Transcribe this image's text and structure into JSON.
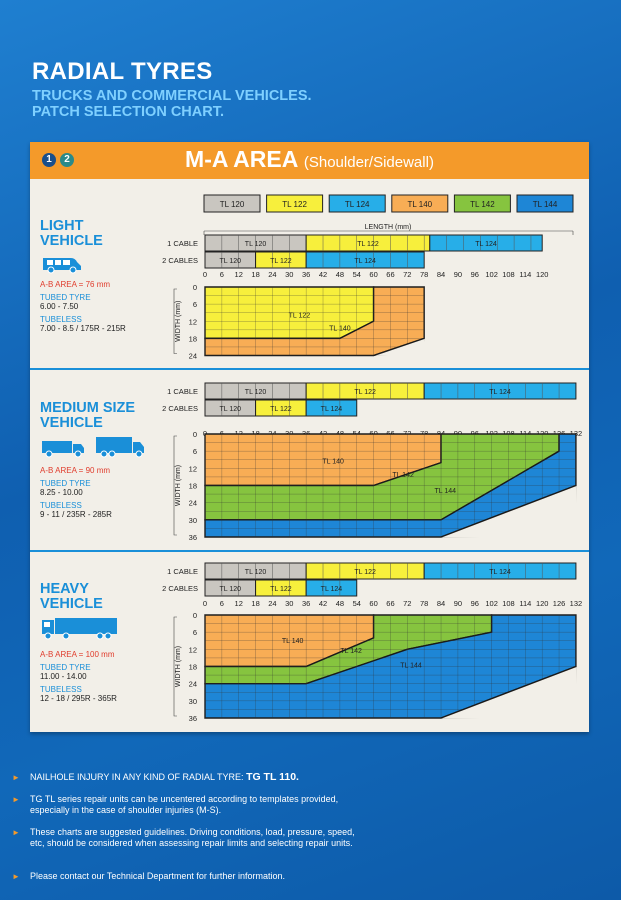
{
  "header": {
    "title": "RADIAL TYRES",
    "subtitle_line1": "TRUCKS AND COMMERCIAL VEHICLES.",
    "subtitle_line2": "PATCH SELECTION CHART."
  },
  "band": {
    "num1": "1",
    "num2": "2",
    "title": "M-A AREA",
    "title_small": "(Shoulder/Sidewall)"
  },
  "legend": {
    "items": [
      {
        "label": "TL 120",
        "color": "#c9c6c0"
      },
      {
        "label": "TL 122",
        "color": "#f7ef3c"
      },
      {
        "label": "TL 124",
        "color": "#27aee8"
      },
      {
        "label": "TL 140",
        "color": "#f8ad55"
      },
      {
        "label": "TL 142",
        "color": "#86c43f"
      },
      {
        "label": "TL 144",
        "color": "#1e86d6"
      }
    ],
    "length_label": "LENGTH (mm)"
  },
  "labels": {
    "one_cable": "1 CABLE",
    "two_cables": "2 CABLES",
    "width_axis": "WIDTH (mm)"
  },
  "sections": [
    {
      "name_line1": "LIGHT",
      "name_line2": "VEHICLE",
      "ab_area": "A-B AREA = 76 mm",
      "tubed_label": "TUBED TYRE",
      "tubed_value": "6.00 - 7.50",
      "tubeless_label": "TUBELESS",
      "tubeless_value": "7.00 - 8.5 / 175R - 215R"
    },
    {
      "name_line1": "MEDIUM SIZE",
      "name_line2": "VEHICLE",
      "ab_area": "A-B AREA = 90 mm",
      "tubed_label": "TUBED TYRE",
      "tubed_value": "8.25 - 10.00",
      "tubeless_label": "TUBELESS",
      "tubeless_value": "9 - 11 / 235R - 285R"
    },
    {
      "name_line1": "HEAVY",
      "name_line2": "VEHICLE",
      "ab_area": "A-B AREA = 100 mm",
      "tubed_label": "TUBED TYRE",
      "tubed_value": "11.00 - 14.00",
      "tubeless_label": "TUBELESS",
      "tubeless_value": "12 - 18 / 295R - 365R"
    }
  ],
  "chart_data": [
    {
      "type": "area",
      "vehicle": "LIGHT VEHICLE",
      "x_ticks": [
        "0",
        "6",
        "12",
        "18",
        "24",
        "30",
        "36",
        "42",
        "48",
        "54",
        "60",
        "66",
        "72",
        "78",
        "84",
        "90",
        "96",
        "102",
        "108",
        "114",
        "120"
      ],
      "y_ticks": [
        "0",
        "6",
        "12",
        "18",
        "24"
      ],
      "xlim": [
        0,
        78
      ],
      "ylim": [
        0,
        24
      ],
      "one_cable": [
        {
          "label": "TL 120",
          "from": 0,
          "to": 36
        },
        {
          "label": "TL 122",
          "from": 36,
          "to": 80
        },
        {
          "label": "TL 124",
          "from": 80,
          "to": 120
        }
      ],
      "two_cables": [
        {
          "label": "TL 120",
          "from": 0,
          "to": 18
        },
        {
          "label": "TL 122",
          "from": 18,
          "to": 36
        },
        {
          "label": "TL 124",
          "from": 36,
          "to": 78
        }
      ],
      "regions": [
        {
          "label": "TL 122",
          "polygon": [
            [
              0,
              0
            ],
            [
              60,
              0
            ],
            [
              60,
              12
            ],
            [
              48,
              18
            ],
            [
              0,
              18
            ]
          ]
        },
        {
          "label": "TL 140",
          "polygon": [
            [
              60,
              0
            ],
            [
              78,
              0
            ],
            [
              78,
              18
            ],
            [
              60,
              24
            ],
            [
              0,
              24
            ],
            [
              0,
              18
            ],
            [
              48,
              18
            ],
            [
              60,
              12
            ]
          ]
        }
      ]
    },
    {
      "type": "area",
      "vehicle": "MEDIUM SIZE VEHICLE",
      "x_ticks": [
        "0",
        "6",
        "12",
        "18",
        "24",
        "30",
        "36",
        "42",
        "48",
        "54",
        "60",
        "66",
        "72",
        "78",
        "84",
        "90",
        "96",
        "102",
        "108",
        "114",
        "120",
        "126",
        "132"
      ],
      "y_ticks": [
        "0",
        "6",
        "12",
        "18",
        "24",
        "30",
        "36"
      ],
      "xlim": [
        0,
        132
      ],
      "ylim": [
        0,
        36
      ],
      "one_cable": [
        {
          "label": "TL 120",
          "from": 0,
          "to": 36
        },
        {
          "label": "TL 122",
          "from": 36,
          "to": 78
        },
        {
          "label": "TL 124",
          "from": 78,
          "to": 132
        }
      ],
      "two_cables": [
        {
          "label": "TL 120",
          "from": 0,
          "to": 18
        },
        {
          "label": "TL 122",
          "from": 18,
          "to": 36
        },
        {
          "label": "TL 124",
          "from": 36,
          "to": 54
        }
      ],
      "regions": [
        {
          "label": "TL 140",
          "polygon": [
            [
              0,
              0
            ],
            [
              84,
              0
            ],
            [
              84,
              10
            ],
            [
              60,
              18
            ],
            [
              0,
              18
            ]
          ]
        },
        {
          "label": "TL 142",
          "polygon": [
            [
              84,
              0
            ],
            [
              126,
              0
            ],
            [
              126,
              6
            ],
            [
              84,
              30
            ],
            [
              0,
              30
            ],
            [
              0,
              18
            ],
            [
              60,
              18
            ],
            [
              84,
              10
            ]
          ]
        },
        {
          "label": "TL 144",
          "polygon": [
            [
              126,
              0
            ],
            [
              132,
              0
            ],
            [
              132,
              18
            ],
            [
              84,
              36
            ],
            [
              0,
              36
            ],
            [
              0,
              30
            ],
            [
              84,
              30
            ],
            [
              126,
              6
            ]
          ]
        }
      ]
    },
    {
      "type": "area",
      "vehicle": "HEAVY VEHICLE",
      "x_ticks": [
        "0",
        "6",
        "12",
        "18",
        "24",
        "30",
        "36",
        "42",
        "48",
        "54",
        "60",
        "66",
        "72",
        "78",
        "84",
        "90",
        "96",
        "102",
        "108",
        "114",
        "120",
        "126",
        "132"
      ],
      "y_ticks": [
        "0",
        "6",
        "12",
        "18",
        "24",
        "30",
        "36"
      ],
      "xlim": [
        0,
        132
      ],
      "ylim": [
        0,
        36
      ],
      "one_cable": [
        {
          "label": "TL 120",
          "from": 0,
          "to": 36
        },
        {
          "label": "TL 122",
          "from": 36,
          "to": 78
        },
        {
          "label": "TL 124",
          "from": 78,
          "to": 132
        }
      ],
      "two_cables": [
        {
          "label": "TL 120",
          "from": 0,
          "to": 18
        },
        {
          "label": "TL 122",
          "from": 18,
          "to": 36
        },
        {
          "label": "TL 124",
          "from": 36,
          "to": 54
        }
      ],
      "regions": [
        {
          "label": "TL 140",
          "polygon": [
            [
              0,
              0
            ],
            [
              60,
              0
            ],
            [
              60,
              8
            ],
            [
              36,
              18
            ],
            [
              0,
              18
            ]
          ]
        },
        {
          "label": "TL 142",
          "polygon": [
            [
              60,
              0
            ],
            [
              102,
              0
            ],
            [
              102,
              6
            ],
            [
              72,
              12
            ],
            [
              36,
              24
            ],
            [
              0,
              24
            ],
            [
              0,
              18
            ],
            [
              36,
              18
            ],
            [
              60,
              8
            ]
          ]
        },
        {
          "label": "TL 144",
          "polygon": [
            [
              102,
              0
            ],
            [
              132,
              0
            ],
            [
              132,
              18
            ],
            [
              84,
              36
            ],
            [
              0,
              36
            ],
            [
              0,
              24
            ],
            [
              36,
              24
            ],
            [
              72,
              12
            ],
            [
              102,
              6
            ]
          ]
        }
      ]
    }
  ],
  "footer": [
    {
      "text": "NAILHOLE INJURY IN ANY KIND OF RADIAL TYRE: ",
      "bold": "TG TL 110."
    },
    {
      "text": "TG TL series repair units can be uncentered according to templates provided, especially in the case of shoulder injuries (M-S).",
      "bold": ""
    },
    {
      "text": "These charts are suggested guidelines. Driving conditions, load, pressure, speed, etc, should be considered when assessing repair limits and selecting repair units.",
      "bold": ""
    },
    {
      "text": "Please contact our Technical Department for further information.",
      "bold": ""
    }
  ]
}
